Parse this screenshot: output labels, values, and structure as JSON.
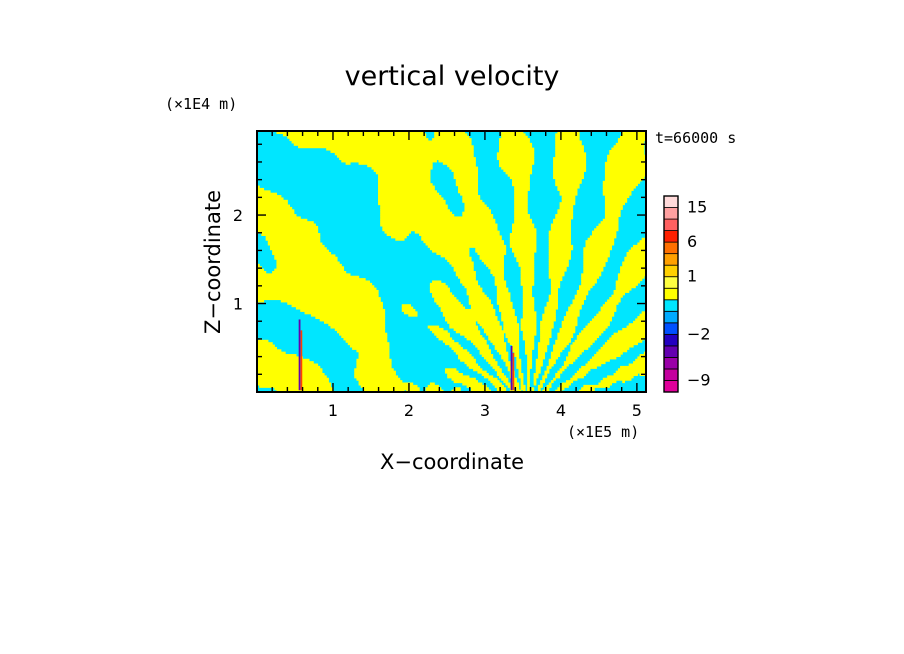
{
  "chart_data": {
    "type": "heatmap",
    "title": "vertical velocity",
    "xlabel": "X−coordinate",
    "ylabel": "Z−coordinate",
    "x_unit": "(×1E5 m)",
    "y_unit": "(×1E4 m)",
    "time_label": "t=66000 s",
    "xlim": [
      0,
      5.12
    ],
    "ylim": [
      0,
      2.95
    ],
    "x_ticks": [
      1,
      2,
      3,
      4,
      5
    ],
    "y_ticks": [
      1,
      2
    ],
    "x_tick_labels": [
      "1",
      "2",
      "3",
      "4",
      "5"
    ],
    "y_tick_labels": [
      "1",
      "2"
    ],
    "colorbar": {
      "levels": [
        -12,
        -9,
        -6,
        -4,
        -3,
        -2,
        -1,
        -0.5,
        0,
        0.5,
        1,
        2,
        3,
        6,
        9,
        12,
        15,
        20
      ],
      "labels": [
        {
          "value": 15,
          "text": "15"
        },
        {
          "value": 6,
          "text": "6"
        },
        {
          "value": 1,
          "text": "1"
        },
        {
          "value": -2,
          "text": "−2"
        },
        {
          "value": -9,
          "text": "−9"
        }
      ],
      "colors": [
        "#e0009a",
        "#c4009e",
        "#9a00a8",
        "#6400b0",
        "#2400c0",
        "#0050ff",
        "#00aaff",
        "#00e6ff",
        "#ffff00",
        "#ffff40",
        "#ffd000",
        "#ffa000",
        "#ff7000",
        "#ff2000",
        "#ff6060",
        "#ffa0a0",
        "#ffdada"
      ]
    },
    "field_colors": {
      "negative": "#00e6ff",
      "positive": "#ffff00",
      "strong_negative": "#6400b0",
      "strong_positive": "#ff4000"
    },
    "grid": false
  }
}
